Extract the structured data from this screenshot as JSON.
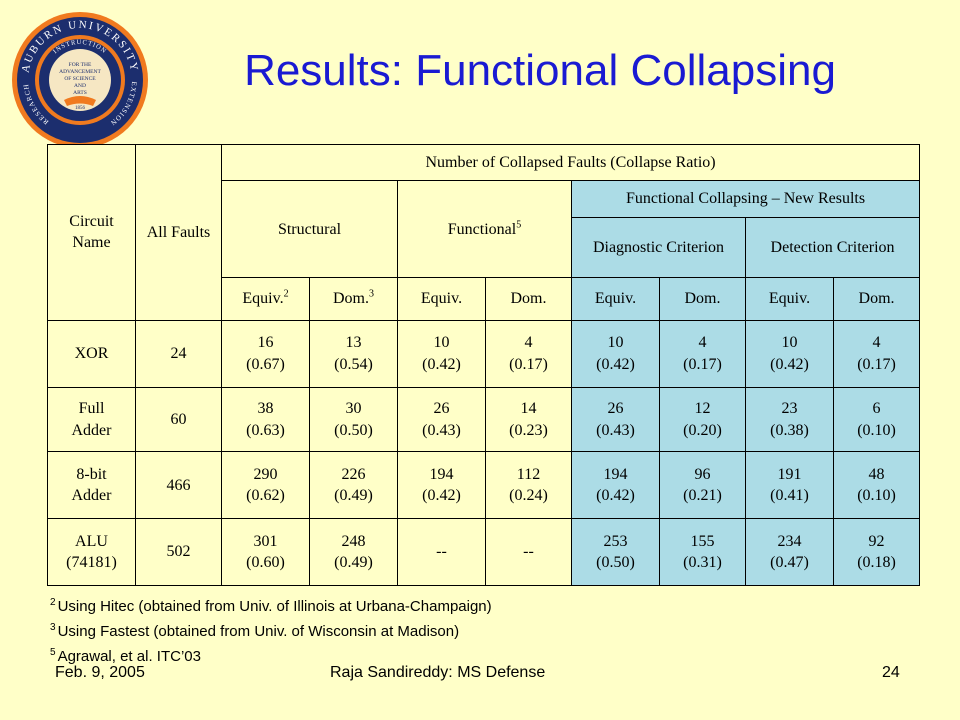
{
  "slide": {
    "title": "Results: Functional Collapsing",
    "logo": {
      "ring_top": "AUBURN UNIVERSITY",
      "ring_left": "RESEARCH",
      "ring_right": "EXTENSION",
      "ring_inner_top": "INSTRUCTION",
      "center": [
        "FOR THE",
        "ADVANCEMENT",
        "OF SCIENCE",
        "AND",
        "ARTS"
      ],
      "year": "1856",
      "colors": {
        "navy": "#1c2e6e",
        "orange": "#f07a1f",
        "cream": "#f6e7c3"
      }
    }
  },
  "table": {
    "header": {
      "circuit_name": "Circuit Name",
      "all_faults": "All Faults",
      "collapsed_group": "Number of Collapsed Faults (Collapse Ratio)",
      "structural": "Structural",
      "functional": "Functional",
      "functional_sup": "5",
      "new_results": "Functional Collapsing – New Results",
      "diagnostic": "Diagnostic Criterion",
      "detection": "Detection Criterion",
      "equiv": "Equiv.",
      "dom": "Dom.",
      "equiv_sup": "2",
      "dom_sup": "3"
    },
    "rows": [
      {
        "name": [
          "XOR"
        ],
        "all": "24",
        "cells": [
          [
            "16",
            "(0.67)"
          ],
          [
            "13",
            "(0.54)"
          ],
          [
            "10",
            "(0.42)"
          ],
          [
            "4",
            "(0.17)"
          ],
          [
            "10",
            "(0.42)"
          ],
          [
            "4",
            "(0.17)"
          ],
          [
            "10",
            "(0.42)"
          ],
          [
            "4",
            "(0.17)"
          ]
        ]
      },
      {
        "name": [
          "Full",
          "Adder"
        ],
        "all": "60",
        "cells": [
          [
            "38",
            "(0.63)"
          ],
          [
            "30",
            "(0.50)"
          ],
          [
            "26",
            "(0.43)"
          ],
          [
            "14",
            "(0.23)"
          ],
          [
            "26",
            "(0.43)"
          ],
          [
            "12",
            "(0.20)"
          ],
          [
            "23",
            "(0.38)"
          ],
          [
            "6",
            "(0.10)"
          ]
        ]
      },
      {
        "name": [
          "8-bit",
          "Adder"
        ],
        "all": "466",
        "cells": [
          [
            "290",
            "(0.62)"
          ],
          [
            "226",
            "(0.49)"
          ],
          [
            "194",
            "(0.42)"
          ],
          [
            "112",
            "(0.24)"
          ],
          [
            "194",
            "(0.42)"
          ],
          [
            "96",
            "(0.21)"
          ],
          [
            "191",
            "(0.41)"
          ],
          [
            "48",
            "(0.10)"
          ]
        ]
      },
      {
        "name": [
          "ALU",
          "(74181)"
        ],
        "all": "502",
        "cells": [
          [
            "301",
            "(0.60)"
          ],
          [
            "248",
            "(0.49)"
          ],
          [
            "--",
            ""
          ],
          [
            "--",
            ""
          ],
          [
            "253",
            "(0.50)"
          ],
          [
            "155",
            "(0.31)"
          ],
          [
            "234",
            "(0.47)"
          ],
          [
            "92",
            "(0.18)"
          ]
        ]
      }
    ]
  },
  "footnotes": [
    {
      "num": "2",
      "text": "Using Hitec (obtained from Univ. of Illinois at Urbana-Champaign)"
    },
    {
      "num": "3",
      "text": "Using Fastest (obtained from Univ. of Wisconsin at Madison)"
    },
    {
      "num": "5",
      "text": "Agrawal, et al. ITC’03"
    }
  ],
  "footer": {
    "date": "Feb. 9, 2005",
    "presenter": "Raja Sandireddy: MS Defense",
    "page": "24"
  }
}
